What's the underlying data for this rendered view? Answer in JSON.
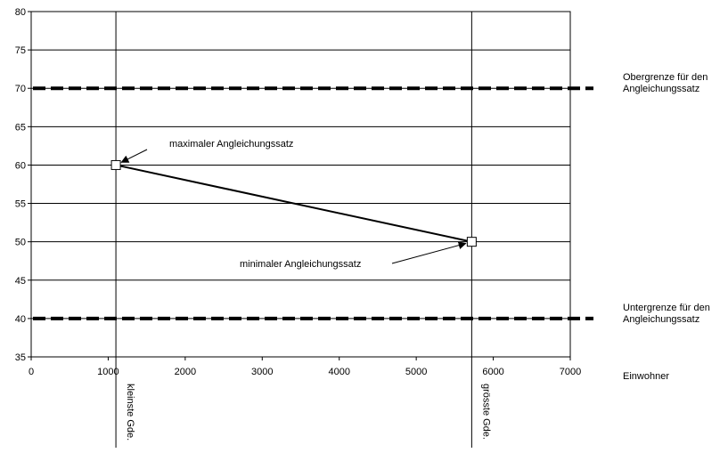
{
  "chart_data": {
    "type": "line",
    "xlim": [
      0,
      7000
    ],
    "ylim": [
      35,
      80
    ],
    "x_ticks": [
      0,
      1000,
      2000,
      3000,
      4000,
      5000,
      6000,
      7000
    ],
    "y_ticks": [
      35,
      40,
      45,
      50,
      55,
      60,
      65,
      70,
      75,
      80
    ],
    "grid": true,
    "xlabel": "Einwohner",
    "series": [
      {
        "points": [
          {
            "x": 1100,
            "y": 60
          },
          {
            "x": 5720,
            "y": 50
          }
        ]
      }
    ],
    "reference_lines": [
      {
        "y": 70,
        "label_line1": "Obergrenze für den",
        "label_line2": "Angleichungssatz"
      },
      {
        "y": 40,
        "label_line1": "Untergrenze für den",
        "label_line2": "Angleichungssatz"
      }
    ],
    "vertical_markers": [
      {
        "x": 1100,
        "label": "kleinste Gde."
      },
      {
        "x": 5720,
        "label": "grösste Gde."
      }
    ],
    "annotations": [
      {
        "text": "maximaler Angleichungssatz",
        "target_x": 1100,
        "target_y": 60
      },
      {
        "text": "minimaler Angleichungssatz",
        "target_x": 5720,
        "target_y": 50
      }
    ]
  }
}
